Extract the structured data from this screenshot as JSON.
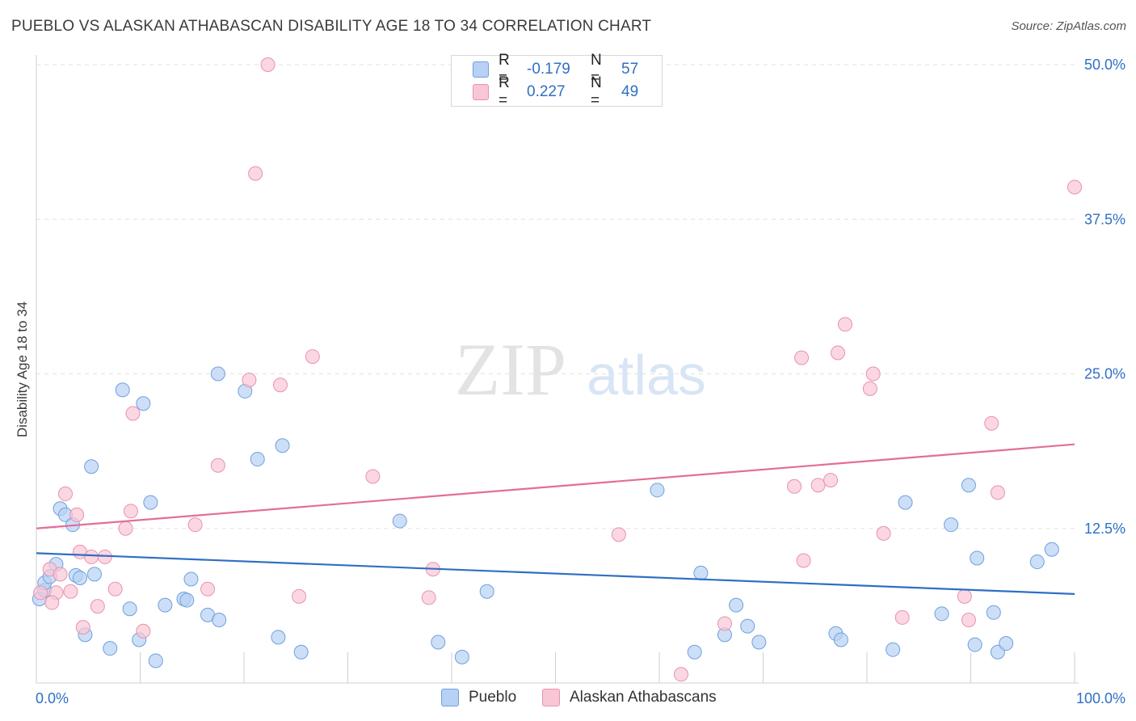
{
  "header": {
    "title": "PUEBLO VS ALASKAN ATHABASCAN DISABILITY AGE 18 TO 34 CORRELATION CHART",
    "source": "Source: ZipAtlas.com"
  },
  "watermark": {
    "part1": "ZIP",
    "part2": "atlas"
  },
  "stats": [
    {
      "r_label": "R =",
      "r_value": "-0.179",
      "n_label": "N =",
      "n_value": "57"
    },
    {
      "r_label": "R =",
      "r_value": "0.227",
      "n_label": "N =",
      "n_value": "49"
    }
  ],
  "colors": {
    "pueblo_fill": "#b7d1f4",
    "pueblo_stroke": "#6fa0de",
    "pueblo_line": "#2f6fc4",
    "alaskan_fill": "#f9c6d6",
    "alaskan_stroke": "#e892ae",
    "alaskan_line": "#e36e97",
    "tick_label": "#2f6fc4"
  },
  "chart_data": {
    "type": "scatter",
    "title": "PUEBLO VS ALASKAN ATHABASCAN DISABILITY AGE 18 TO 34 CORRELATION CHART",
    "xlabel": "",
    "ylabel": "Disability Age 18 to 34",
    "xlim": [
      0,
      100
    ],
    "ylim": [
      0,
      50
    ],
    "x_tick_labels": [
      "0.0%",
      "100.0%"
    ],
    "y_ticks": [
      12.5,
      25.0,
      37.5,
      50.0
    ],
    "y_tick_labels": [
      "12.5%",
      "25.0%",
      "37.5%",
      "50.0%"
    ],
    "grid": true,
    "legend_position": "bottom-center",
    "series": [
      {
        "name": "Pueblo",
        "points": [
          [
            0.3,
            6.8
          ],
          [
            0.8,
            7.5
          ],
          [
            0.8,
            8.1
          ],
          [
            1.3,
            8.6
          ],
          [
            1.9,
            9.6
          ],
          [
            2.3,
            14.1
          ],
          [
            2.8,
            13.6
          ],
          [
            3.5,
            12.8
          ],
          [
            3.8,
            8.7
          ],
          [
            4.2,
            8.5
          ],
          [
            4.7,
            3.9
          ],
          [
            5.3,
            17.5
          ],
          [
            5.6,
            8.8
          ],
          [
            7.1,
            2.8
          ],
          [
            8.3,
            23.7
          ],
          [
            9.0,
            6.0
          ],
          [
            9.9,
            3.5
          ],
          [
            10.3,
            22.6
          ],
          [
            11.0,
            14.6
          ],
          [
            11.5,
            1.8
          ],
          [
            12.4,
            6.3
          ],
          [
            14.2,
            6.8
          ],
          [
            14.5,
            6.7
          ],
          [
            14.9,
            8.4
          ],
          [
            16.5,
            5.5
          ],
          [
            17.5,
            25.0
          ],
          [
            17.6,
            5.1
          ],
          [
            20.1,
            23.6
          ],
          [
            21.3,
            18.1
          ],
          [
            23.3,
            3.7
          ],
          [
            23.7,
            19.2
          ],
          [
            25.5,
            2.5
          ],
          [
            35.0,
            13.1
          ],
          [
            38.7,
            3.3
          ],
          [
            41.0,
            2.1
          ],
          [
            43.4,
            7.4
          ],
          [
            59.8,
            15.6
          ],
          [
            63.4,
            2.5
          ],
          [
            64.0,
            8.9
          ],
          [
            66.3,
            3.9
          ],
          [
            67.4,
            6.3
          ],
          [
            68.5,
            4.6
          ],
          [
            69.6,
            3.3
          ],
          [
            77.0,
            4.0
          ],
          [
            77.5,
            3.5
          ],
          [
            82.5,
            2.7
          ],
          [
            83.7,
            14.6
          ],
          [
            87.2,
            5.6
          ],
          [
            88.1,
            12.8
          ],
          [
            89.8,
            16.0
          ],
          [
            90.4,
            3.1
          ],
          [
            90.6,
            10.1
          ],
          [
            92.2,
            5.7
          ],
          [
            92.6,
            2.5
          ],
          [
            93.4,
            3.2
          ],
          [
            96.4,
            9.8
          ],
          [
            97.8,
            10.8
          ]
        ],
        "trend": [
          [
            0,
            10.5
          ],
          [
            100,
            7.2
          ]
        ]
      },
      {
        "name": "Alaskan Athabascans",
        "points": [
          [
            0.4,
            7.3
          ],
          [
            1.3,
            9.2
          ],
          [
            1.9,
            7.3
          ],
          [
            2.3,
            8.8
          ],
          [
            2.8,
            15.3
          ],
          [
            3.3,
            7.4
          ],
          [
            3.9,
            13.6
          ],
          [
            4.2,
            10.6
          ],
          [
            4.5,
            4.5
          ],
          [
            5.3,
            10.2
          ],
          [
            5.9,
            6.2
          ],
          [
            6.6,
            10.2
          ],
          [
            7.6,
            7.6
          ],
          [
            8.6,
            12.5
          ],
          [
            9.1,
            13.9
          ],
          [
            9.3,
            21.8
          ],
          [
            10.3,
            4.2
          ],
          [
            15.3,
            12.8
          ],
          [
            16.5,
            7.6
          ],
          [
            17.5,
            17.6
          ],
          [
            20.5,
            24.5
          ],
          [
            21.1,
            41.2
          ],
          [
            22.3,
            50.0
          ],
          [
            23.5,
            24.1
          ],
          [
            25.3,
            7.0
          ],
          [
            26.6,
            26.4
          ],
          [
            32.4,
            16.7
          ],
          [
            37.8,
            6.9
          ],
          [
            38.2,
            9.2
          ],
          [
            56.1,
            12.0
          ],
          [
            62.1,
            0.7
          ],
          [
            66.3,
            4.8
          ],
          [
            73.0,
            15.9
          ],
          [
            73.7,
            26.3
          ],
          [
            73.9,
            9.9
          ],
          [
            75.3,
            16.0
          ],
          [
            76.5,
            16.4
          ],
          [
            77.2,
            26.7
          ],
          [
            77.9,
            29.0
          ],
          [
            80.3,
            23.8
          ],
          [
            80.6,
            25.0
          ],
          [
            81.6,
            12.1
          ],
          [
            83.4,
            5.3
          ],
          [
            89.4,
            7.0
          ],
          [
            89.8,
            5.1
          ],
          [
            92.0,
            21.0
          ],
          [
            92.6,
            15.4
          ],
          [
            100.0,
            40.1
          ],
          [
            1.5,
            6.5
          ]
        ],
        "trend": [
          [
            0,
            12.5
          ],
          [
            100,
            19.3
          ]
        ]
      }
    ]
  }
}
